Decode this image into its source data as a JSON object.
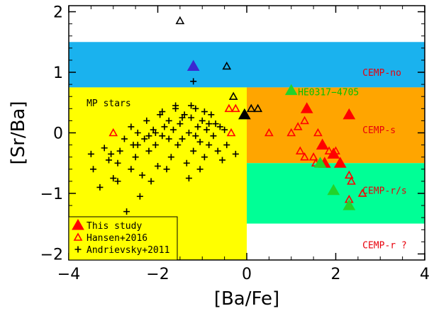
{
  "chart_data": {
    "type": "scatter",
    "title": "",
    "xlabel": "[Ba/Fe]",
    "ylabel": "[Sr/Ba]",
    "xlim": [
      -4,
      4
    ],
    "ylim": [
      -2.1,
      2.1
    ],
    "xticks": [
      -4,
      -2,
      0,
      2,
      4
    ],
    "xtick_labels": [
      "−4",
      "−2",
      "0",
      "2",
      "4"
    ],
    "yticks": [
      -2,
      -1,
      0,
      1,
      2
    ],
    "ytick_labels": [
      "−2",
      "−1",
      "0",
      "1",
      "2"
    ],
    "grid": false,
    "regions": [
      {
        "label": "CEMP-no",
        "color": "#1ab2ee",
        "x": [
          -4,
          4
        ],
        "y": [
          0.75,
          1.5
        ],
        "label_pos": [
          2.6,
          1.0
        ]
      },
      {
        "label": "MP stars",
        "color": "#ffff00",
        "x": [
          -4,
          0
        ],
        "y": [
          -2.1,
          0.75
        ],
        "label_pos": [
          -3.6,
          0.5
        ]
      },
      {
        "label": "CEMP-s",
        "color": "#ffa500",
        "x": [
          0,
          4
        ],
        "y": [
          -0.5,
          0.75
        ],
        "label_pos": [
          2.6,
          0.05
        ]
      },
      {
        "label": "CEMP-r/s",
        "color": "#00ff96",
        "x": [
          0,
          4
        ],
        "y": [
          -1.5,
          -0.5
        ],
        "label_pos": [
          2.6,
          -0.95
        ]
      },
      {
        "label": "CEMP-r ?",
        "color": "#ffffff",
        "x": [
          0,
          4
        ],
        "y": [
          -2.1,
          -1.5
        ],
        "label_pos": [
          2.6,
          -1.85
        ]
      }
    ],
    "annotations": [
      {
        "text": "HE0317−4705",
        "x": 1.15,
        "y": 0.68
      }
    ],
    "series": [
      {
        "name": "This study",
        "marker": "filled-triangle",
        "color": "#ff0000",
        "points": [
          {
            "x": 1.35,
            "y": 0.4,
            "c": "#ff0000"
          },
          {
            "x": 2.3,
            "y": 0.3,
            "c": "#ff0000"
          },
          {
            "x": 1.7,
            "y": -0.2,
            "c": "#ff0000"
          },
          {
            "x": 1.95,
            "y": -0.35,
            "c": "#ff0000"
          },
          {
            "x": 2.1,
            "y": -0.5,
            "c": "#ff0000"
          },
          {
            "x": 1.75,
            "y": -0.5,
            "c": "#ff0000"
          },
          {
            "x": -1.2,
            "y": 1.1,
            "c": "#3b28d0"
          },
          {
            "x": -0.05,
            "y": 0.3,
            "c": "#000000"
          },
          {
            "x": 1.0,
            "y": 0.7,
            "c": "#22d32a"
          },
          {
            "x": 1.65,
            "y": -0.5,
            "c": "#22d32a"
          },
          {
            "x": 1.95,
            "y": -0.95,
            "c": "#22d32a"
          },
          {
            "x": 2.3,
            "y": -1.2,
            "c": "#22d32a"
          }
        ]
      },
      {
        "name": "Hansen+2016",
        "marker": "open-triangle",
        "color": "#ff0000",
        "points": [
          {
            "x": -1.5,
            "y": 1.85,
            "c": "#000000"
          },
          {
            "x": -0.45,
            "y": 1.1,
            "c": "#000000"
          },
          {
            "x": -0.3,
            "y": 0.6,
            "c": "#000000"
          },
          {
            "x": 0.1,
            "y": 0.4,
            "c": "#000000"
          },
          {
            "x": 0.25,
            "y": 0.4,
            "c": "#000000"
          },
          {
            "x": -0.4,
            "y": 0.4,
            "c": "#ff0000"
          },
          {
            "x": -0.25,
            "y": 0.4,
            "c": "#ff0000"
          },
          {
            "x": -0.35,
            "y": 0.0,
            "c": "#ff0000"
          },
          {
            "x": -3.0,
            "y": 0.0,
            "c": "#ff0000"
          },
          {
            "x": 0.5,
            "y": 0.0,
            "c": "#ff0000"
          },
          {
            "x": 1.0,
            "y": 0.0,
            "c": "#ff0000"
          },
          {
            "x": 1.3,
            "y": 0.2,
            "c": "#ff0000"
          },
          {
            "x": 1.15,
            "y": 0.1,
            "c": "#ff0000"
          },
          {
            "x": 1.6,
            "y": 0.0,
            "c": "#ff0000"
          },
          {
            "x": 1.2,
            "y": -0.3,
            "c": "#ff0000"
          },
          {
            "x": 1.5,
            "y": -0.4,
            "c": "#ff0000"
          },
          {
            "x": 1.3,
            "y": -0.4,
            "c": "#ff0000"
          },
          {
            "x": 1.85,
            "y": -0.3,
            "c": "#ff0000"
          },
          {
            "x": 2.0,
            "y": -0.3,
            "c": "#ff0000"
          },
          {
            "x": 1.55,
            "y": -0.5,
            "c": "#ff0000"
          },
          {
            "x": 2.3,
            "y": -0.7,
            "c": "#ff0000"
          },
          {
            "x": 2.35,
            "y": -0.8,
            "c": "#ff0000"
          },
          {
            "x": 2.6,
            "y": -1.0,
            "c": "#ff0000"
          },
          {
            "x": 2.3,
            "y": -1.1,
            "c": "#ff0000"
          }
        ]
      },
      {
        "name": "Andrievsky+2011",
        "marker": "plus",
        "color": "#000000",
        "points": [
          {
            "x": -1.2,
            "y": 0.85
          },
          {
            "x": -3.5,
            "y": -0.35
          },
          {
            "x": -3.45,
            "y": -0.6
          },
          {
            "x": -3.3,
            "y": -0.9
          },
          {
            "x": -3.2,
            "y": -0.25
          },
          {
            "x": -3.1,
            "y": -0.45
          },
          {
            "x": -3.0,
            "y": -0.75
          },
          {
            "x": -3.05,
            "y": -0.35
          },
          {
            "x": -2.9,
            "y": -0.8
          },
          {
            "x": -2.9,
            "y": -0.5
          },
          {
            "x": -2.85,
            "y": -0.3
          },
          {
            "x": -2.75,
            "y": -0.1
          },
          {
            "x": -2.6,
            "y": -0.6
          },
          {
            "x": -2.6,
            "y": 0.1
          },
          {
            "x": -2.55,
            "y": -0.2
          },
          {
            "x": -2.5,
            "y": -0.4
          },
          {
            "x": -2.45,
            "y": 0.0
          },
          {
            "x": -2.4,
            "y": -1.05
          },
          {
            "x": -2.35,
            "y": -0.7
          },
          {
            "x": -2.3,
            "y": -0.1
          },
          {
            "x": -2.25,
            "y": 0.2
          },
          {
            "x": -2.2,
            "y": -0.3
          },
          {
            "x": -2.15,
            "y": -0.8
          },
          {
            "x": -2.1,
            "y": 0.05
          },
          {
            "x": -2.05,
            "y": -0.2
          },
          {
            "x": -2.0,
            "y": -0.55
          },
          {
            "x": -1.95,
            "y": 0.3
          },
          {
            "x": -1.9,
            "y": -0.05
          },
          {
            "x": -1.85,
            "y": 0.1
          },
          {
            "x": -1.8,
            "y": -0.6
          },
          {
            "x": -1.75,
            "y": 0.2
          },
          {
            "x": -1.7,
            "y": -0.4
          },
          {
            "x": -1.65,
            "y": 0.05
          },
          {
            "x": -1.6,
            "y": 0.4
          },
          {
            "x": -1.55,
            "y": -0.2
          },
          {
            "x": -1.5,
            "y": 0.15
          },
          {
            "x": -1.45,
            "y": -0.1
          },
          {
            "x": -1.4,
            "y": 0.3
          },
          {
            "x": -1.35,
            "y": -0.5
          },
          {
            "x": -1.3,
            "y": 0.0
          },
          {
            "x": -1.3,
            "y": -0.75
          },
          {
            "x": -1.25,
            "y": 0.25
          },
          {
            "x": -1.2,
            "y": -0.3
          },
          {
            "x": -1.15,
            "y": 0.4
          },
          {
            "x": -1.1,
            "y": 0.1
          },
          {
            "x": -1.05,
            "y": -0.15
          },
          {
            "x": -1.0,
            "y": 0.2
          },
          {
            "x": -0.95,
            "y": -0.4
          },
          {
            "x": -0.9,
            "y": 0.05
          },
          {
            "x": -0.85,
            "y": -0.2
          },
          {
            "x": -0.8,
            "y": 0.3
          },
          {
            "x": -0.75,
            "y": -0.05
          },
          {
            "x": -0.7,
            "y": 0.15
          },
          {
            "x": -0.65,
            "y": -0.3
          },
          {
            "x": -0.6,
            "y": 0.1
          },
          {
            "x": -0.55,
            "y": -0.45
          },
          {
            "x": -0.5,
            "y": 0.05
          },
          {
            "x": -0.45,
            "y": -0.2
          },
          {
            "x": -2.7,
            "y": -1.3
          },
          {
            "x": -1.9,
            "y": 0.35
          },
          {
            "x": -1.6,
            "y": 0.45
          },
          {
            "x": -1.25,
            "y": 0.45
          },
          {
            "x": -2.05,
            "y": 0.0
          },
          {
            "x": -1.75,
            "y": -0.1
          },
          {
            "x": -1.45,
            "y": 0.25
          },
          {
            "x": -1.15,
            "y": -0.05
          },
          {
            "x": -0.95,
            "y": 0.35
          },
          {
            "x": -0.85,
            "y": 0.15
          },
          {
            "x": -0.25,
            "y": -0.35
          },
          {
            "x": -1.05,
            "y": -0.6
          },
          {
            "x": -2.45,
            "y": -0.2
          },
          {
            "x": -2.2,
            "y": -0.05
          }
        ]
      }
    ],
    "legend": {
      "position": "bottom-left",
      "entries": [
        "This study",
        "Hansen+2016",
        "Andrievsky+2011"
      ]
    }
  }
}
